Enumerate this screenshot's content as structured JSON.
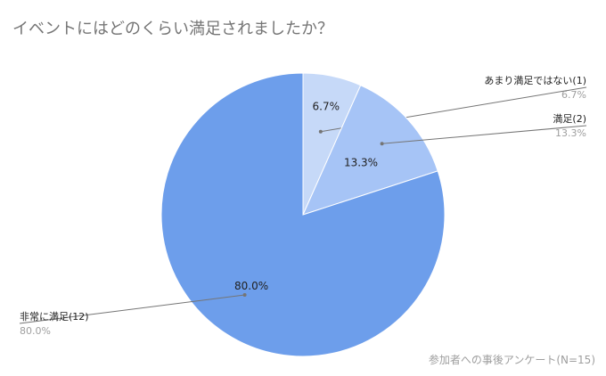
{
  "chart_data": {
    "type": "pie",
    "title": "イベントにはどのくらい満足されましたか？",
    "caption": "参加者への事後アンケート(N=15)",
    "slices": [
      {
        "label": "あまり満足ではない(1)",
        "value": 1,
        "percent": "6.7%",
        "color": "#c6d9f8"
      },
      {
        "label": "満足(2)",
        "value": 2,
        "percent": "13.3%",
        "color": "#a6c4f6"
      },
      {
        "label": "非常に満足(12)",
        "value": 12,
        "percent": "80.0%",
        "color": "#6d9eeb"
      }
    ],
    "legend_position": "outside labels"
  }
}
